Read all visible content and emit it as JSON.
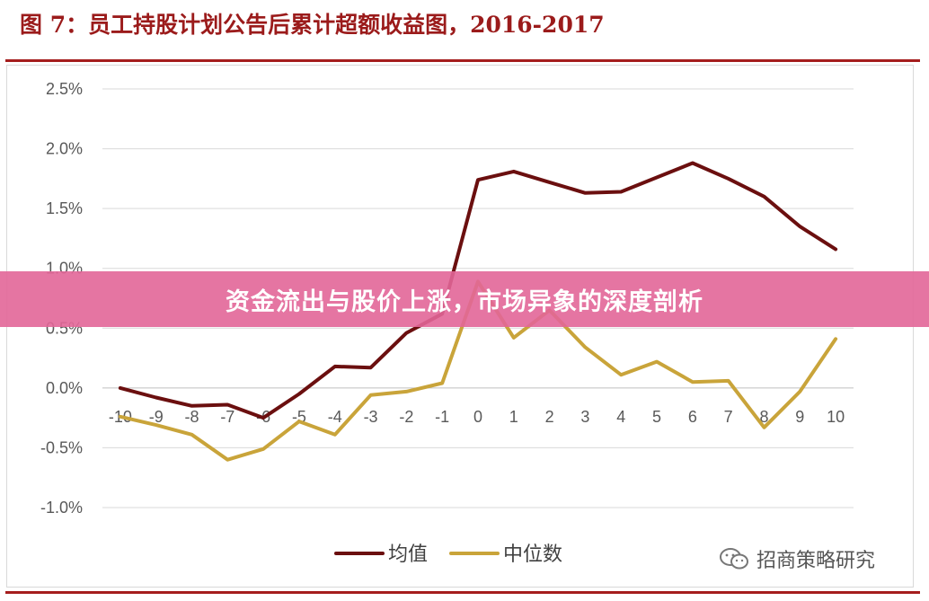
{
  "title": "图 7：员工持股计划公告后累计超额收益图，2016-2017",
  "banner_text": "资金流出与股价上涨，市场异象的深度剖析",
  "watermark": "招商策略研究",
  "colors": {
    "mean": "#6b0f0f",
    "median": "#c9a43a",
    "accent": "#a51d1d"
  },
  "chart_data": {
    "type": "line",
    "x": [
      -10,
      -9,
      -8,
      -7,
      -6,
      -5,
      -4,
      -3,
      -2,
      -1,
      0,
      1,
      2,
      3,
      4,
      5,
      6,
      7,
      8,
      9,
      10
    ],
    "series": [
      {
        "name": "均值",
        "color": "#6b0f0f",
        "values": [
          0.0,
          -0.08,
          -0.15,
          -0.14,
          -0.25,
          -0.05,
          0.18,
          0.17,
          0.46,
          0.62,
          1.74,
          1.81,
          1.72,
          1.63,
          1.64,
          1.76,
          1.88,
          1.75,
          1.6,
          1.35,
          1.16
        ]
      },
      {
        "name": "中位数",
        "color": "#c9a43a",
        "values": [
          -0.24,
          -0.31,
          -0.39,
          -0.6,
          -0.51,
          -0.28,
          -0.39,
          -0.06,
          -0.03,
          0.04,
          0.89,
          0.42,
          0.65,
          0.34,
          0.11,
          0.22,
          0.05,
          0.06,
          -0.33,
          -0.03,
          0.41
        ]
      }
    ],
    "ylim": [
      -1.0,
      2.5
    ],
    "yticks": [
      -1.0,
      -0.5,
      0.0,
      0.5,
      1.0,
      1.5,
      2.0,
      2.5
    ],
    "ytick_labels": [
      "-1.0%",
      "-0.5%",
      "0.0%",
      "0.5%",
      "1.0%",
      "1.5%",
      "2.0%",
      "2.5%"
    ],
    "xtick_labels": [
      "-10",
      "-9",
      "-8",
      "-7",
      "-6",
      "-5",
      "-4",
      "-3",
      "-2",
      "-1",
      "0",
      "1",
      "2",
      "3",
      "4",
      "5",
      "6",
      "7",
      "8",
      "9",
      "10"
    ],
    "grid": true,
    "legend": "bottom-center"
  }
}
